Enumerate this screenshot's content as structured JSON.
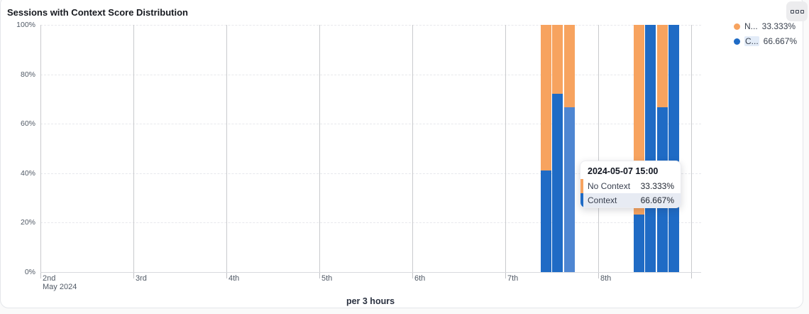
{
  "card": {
    "title": "Sessions with Context Score Distribution"
  },
  "legend": {
    "items": [
      {
        "label": "N...",
        "value": "33.333%",
        "color": "#f7a35f",
        "highlighted": false
      },
      {
        "label": "C...",
        "value": "66.667%",
        "color": "#1f6bc5",
        "highlighted": true
      }
    ]
  },
  "tooltip": {
    "title": "2024-05-07 15:00",
    "rows": [
      {
        "label": "No Context",
        "value": "33.333%",
        "color": "#f7a35f",
        "highlighted": false
      },
      {
        "label": "Context",
        "value": "66.667%",
        "color": "#1f6bc5",
        "highlighted": true
      }
    ]
  },
  "chart_data": {
    "type": "bar",
    "stacked": true,
    "title": "Sessions with Context Score Distribution",
    "xlabel": "per 3 hours",
    "ylabel": "",
    "ylim": [
      0,
      100
    ],
    "y_ticks": [
      "0%",
      "20%",
      "40%",
      "60%",
      "80%",
      "100%"
    ],
    "x_ticks": [
      "2nd",
      "3rd",
      "4th",
      "5th",
      "6th",
      "7th",
      "8th"
    ],
    "x_axis_sublabel": "May 2024",
    "grid": true,
    "legend_position": "top-right",
    "series_names": [
      "Context",
      "No Context"
    ],
    "colors": {
      "context": "#1f6bc5",
      "context_hovered": "#4e86d2",
      "no_context": "#f7a35f"
    },
    "bars": [
      {
        "time": "2024-05-07 09:00",
        "context": 41,
        "no_context": 59,
        "hovered": false
      },
      {
        "time": "2024-05-07 12:00",
        "context": 72,
        "no_context": 28,
        "hovered": false
      },
      {
        "time": "2024-05-07 15:00",
        "context": 66.667,
        "no_context": 33.333,
        "hovered": true
      },
      {
        "time": "2024-05-08 09:00",
        "context": 23.3,
        "no_context": 76.7,
        "hovered": false
      },
      {
        "time": "2024-05-08 12:00",
        "context": 100,
        "no_context": 0,
        "hovered": false
      },
      {
        "time": "2024-05-08 15:00",
        "context": 66.7,
        "no_context": 33.3,
        "hovered": false
      },
      {
        "time": "2024-05-08 18:00",
        "context": 100,
        "no_context": 0,
        "hovered": false
      }
    ]
  }
}
